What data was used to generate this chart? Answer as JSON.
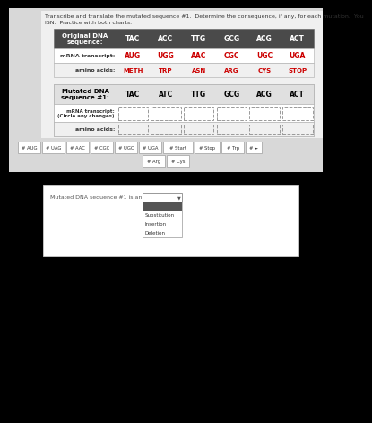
{
  "title_text1": "Transcribe and translate the mutated sequence #1.  Determine the consequence, if any, for each mutation.  You",
  "title_text2": "ISN.  Practice with both charts.",
  "bg_outer": "#c8c8c8",
  "bg_upper": "#e8e8e8",
  "bg_lower_box": "#ffffff",
  "table1_header_bg": "#4a4a4a",
  "red_color": "#cc0000",
  "original_dna_label": "Original DNA\nsequence:",
  "original_codons": [
    "TAC",
    "ACC",
    "TTG",
    "GCG",
    "ACG",
    "ACT"
  ],
  "mrna_label": "mRNA transcript:",
  "mrna_codons": [
    "AUG",
    "UGG",
    "AAC",
    "CGC",
    "UGC",
    "UGA"
  ],
  "amino_label": "amino acids:",
  "amino_acids": [
    "METH",
    "TRP",
    "ASN",
    "ARG",
    "CYS",
    "STOP"
  ],
  "mutated_dna_label": "Mutated DNA\nsequence #1:",
  "mutated_codons": [
    "TAC",
    "ATC",
    "TTG",
    "GCG",
    "ACG",
    "ACT"
  ],
  "mrna2_label": "mRNA transcript:\n(Circle any changes)",
  "amino2_label": "amino acids:",
  "btn_row1": [
    "# AUG",
    "# UAG",
    "# AAC",
    "# CGC",
    "# UGC",
    "# UGA",
    "# Start",
    "# Stop",
    "# Trp",
    "# ►"
  ],
  "btn_row2": [
    "# Arg",
    "# Cys"
  ],
  "dropdown_label": "Mutated DNA sequence #1 is an example of",
  "dropdown_options": [
    "",
    "Substitution",
    "Insertion",
    "Deletion"
  ],
  "dropdown_selected_bg": "#555555"
}
